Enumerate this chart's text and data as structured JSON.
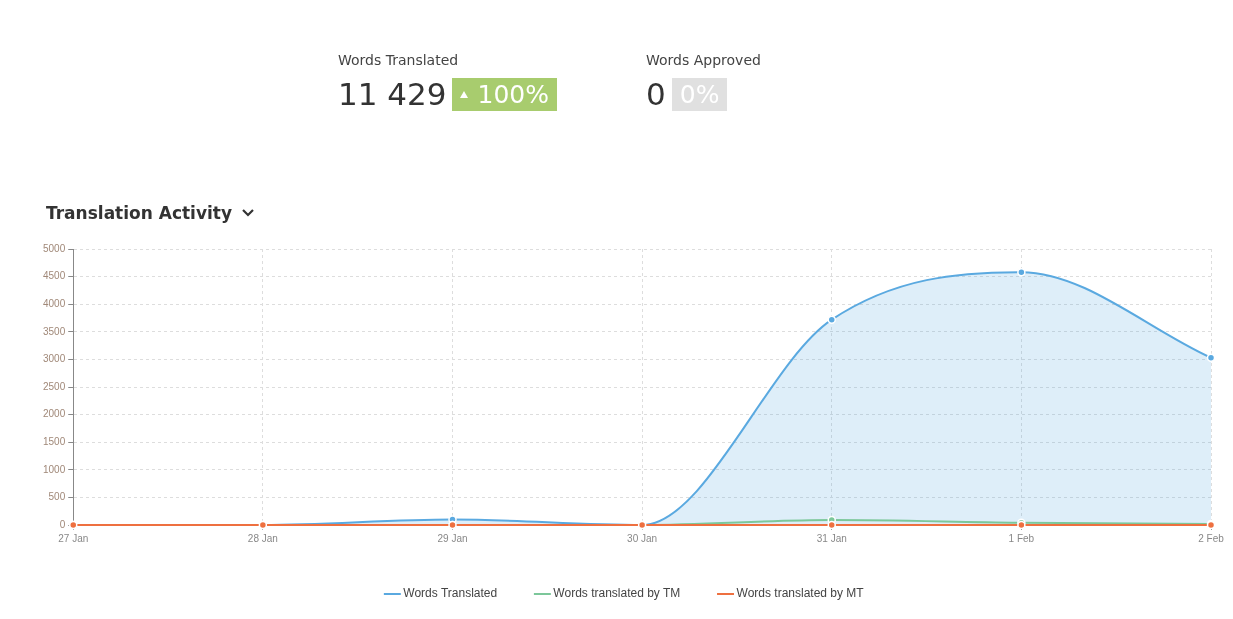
{
  "chart_data": [
    {
      "type": "other",
      "annotations": [
        "Words Translated",
        "11 429",
        "100%",
        "Words Approved",
        "0",
        "0%"
      ]
    },
    {
      "type": "line",
      "title": "Translation Activity",
      "categories": [
        "27 Jan",
        "28 Jan",
        "29 Jan",
        "30 Jan",
        "31 Jan",
        "1 Feb",
        "2 Feb"
      ],
      "series": [
        {
          "name": "Words Translated",
          "type": "area",
          "color": "#5aa9e0",
          "values": [
            0,
            0,
            100,
            0,
            3720,
            4580,
            3030
          ]
        },
        {
          "name": "Words translated by TM",
          "type": "line",
          "color": "#7cc79a",
          "values": [
            null,
            null,
            0,
            0,
            90,
            40,
            20
          ]
        },
        {
          "name": "Words translated by MT",
          "type": "line",
          "color": "#ee7040",
          "values": [
            0,
            0,
            0,
            0,
            0,
            0,
            0
          ]
        }
      ],
      "ylim": [
        0,
        5000
      ],
      "yticks": [
        0,
        500,
        1000,
        1500,
        2000,
        2500,
        3000,
        3500,
        4000,
        4500,
        5000
      ],
      "grid": true,
      "legend": "bottom",
      "marker": "circle"
    }
  ]
}
